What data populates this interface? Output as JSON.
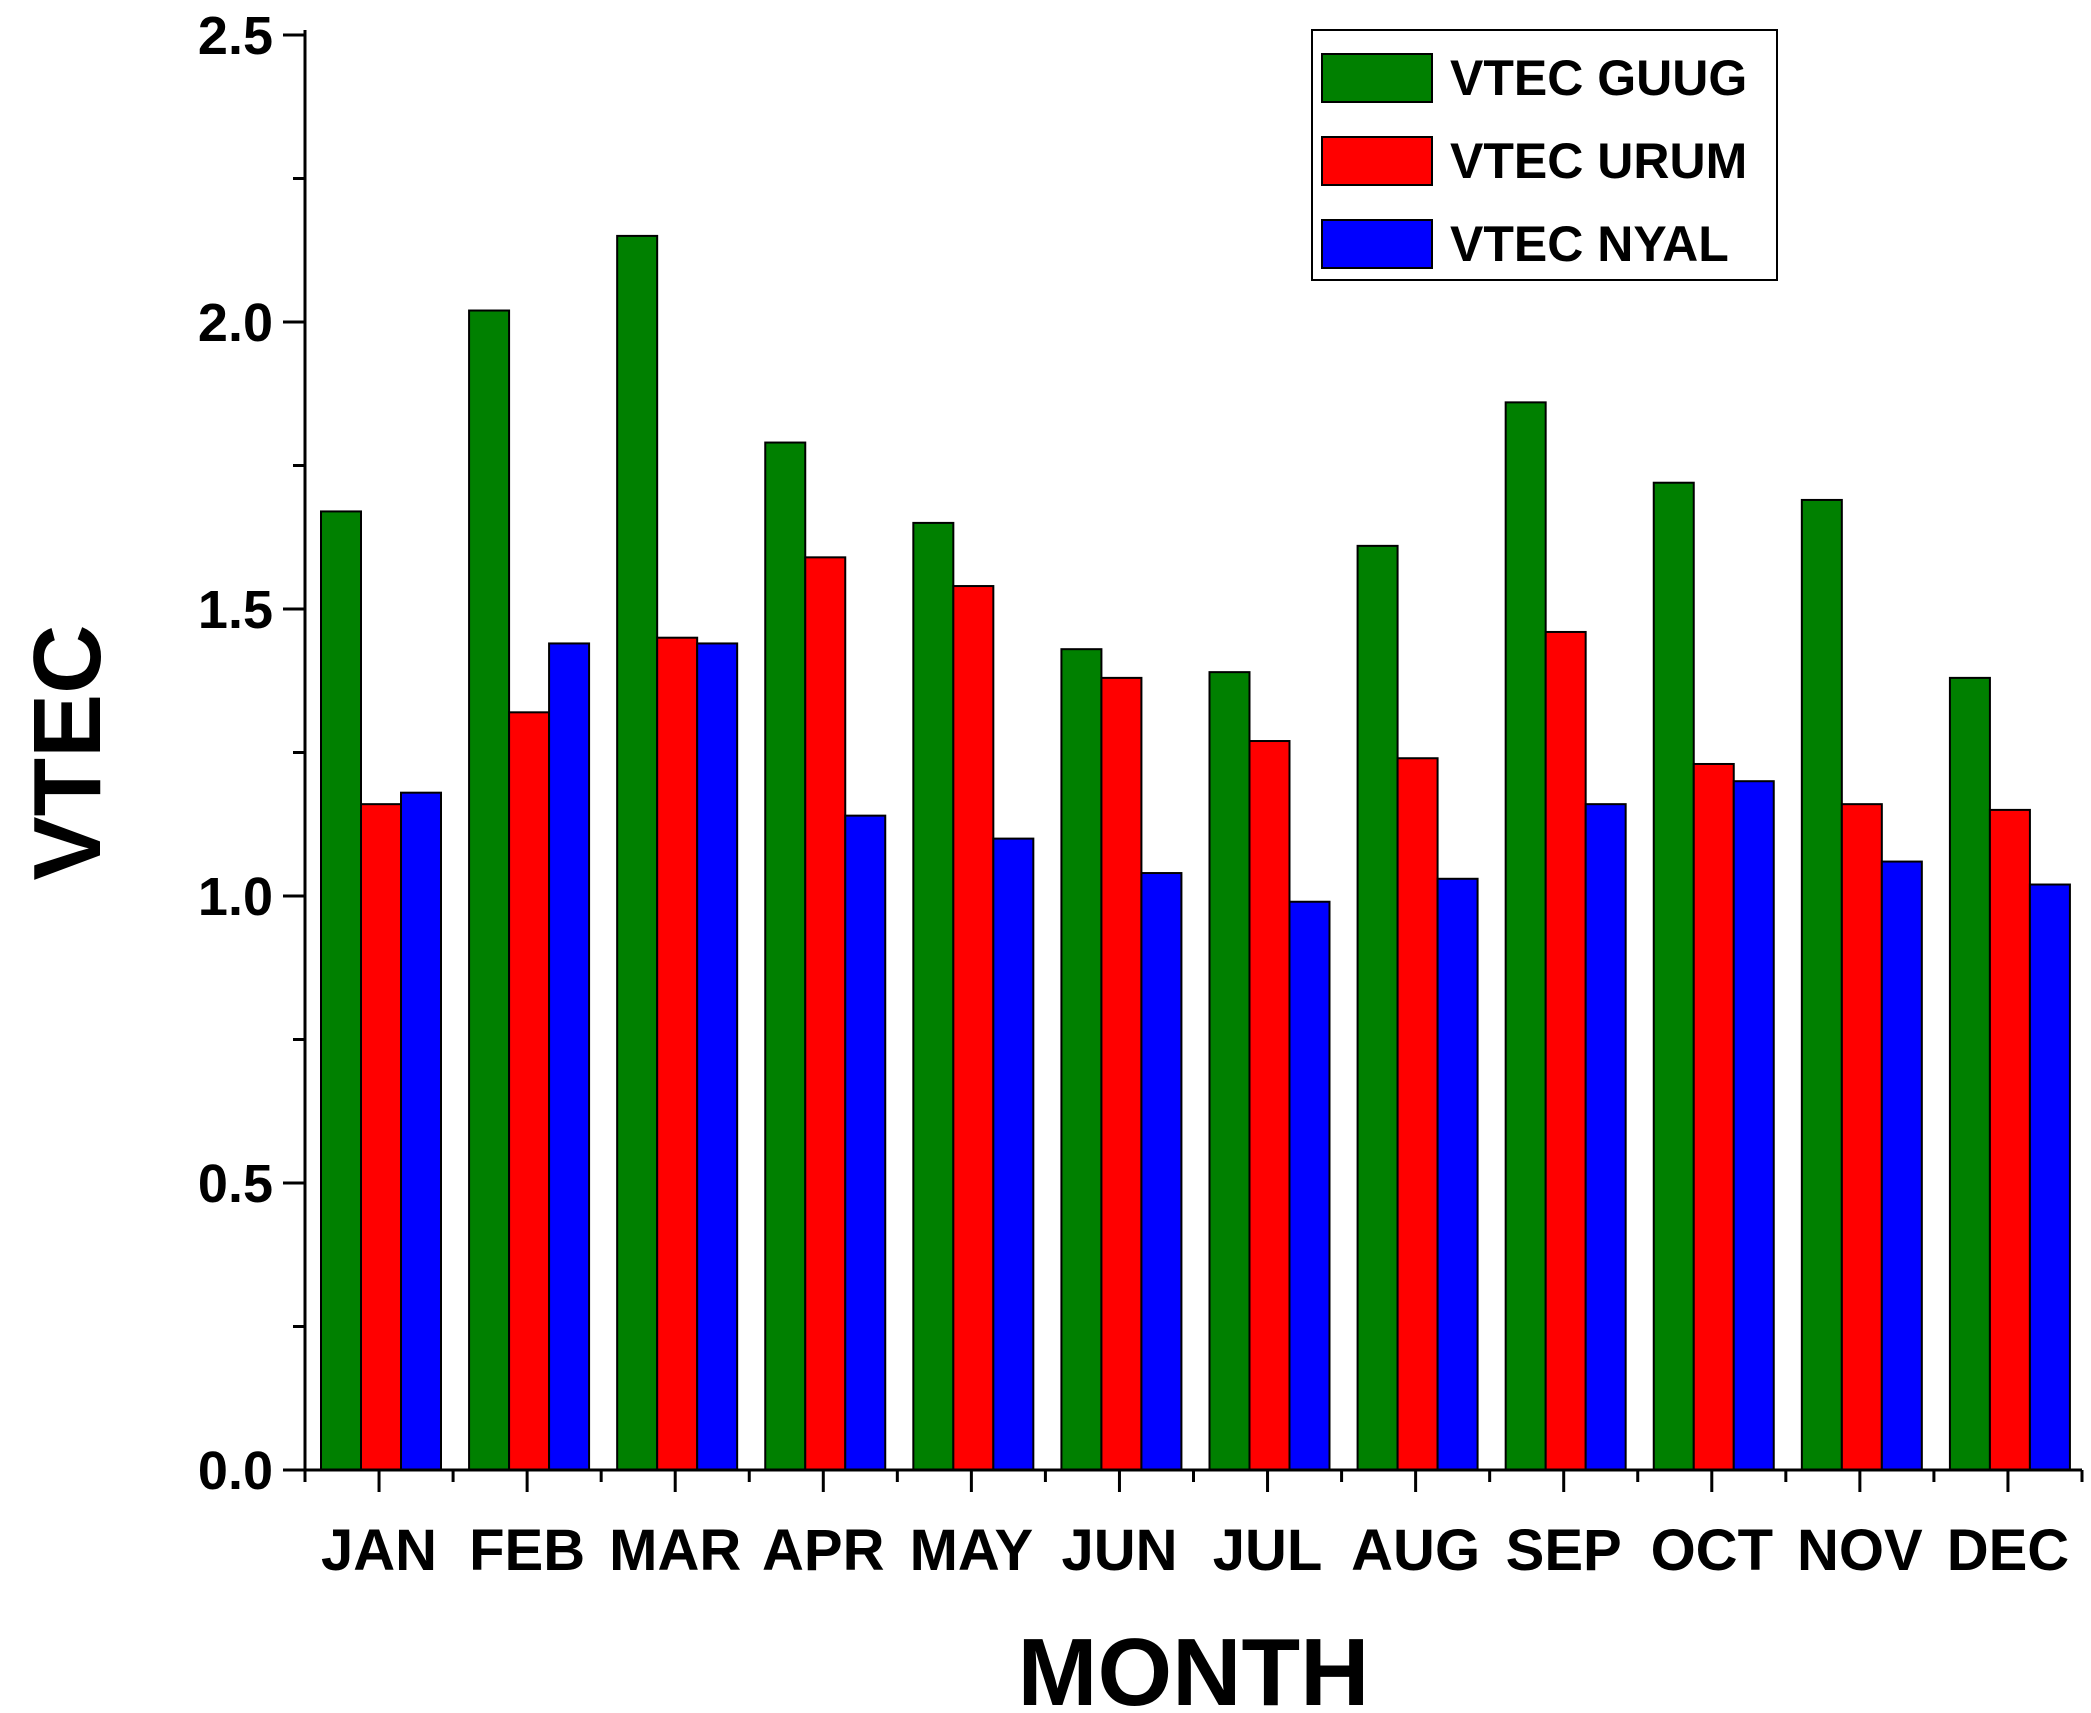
{
  "chart_data": {
    "type": "bar",
    "xlabel": "MONTH",
    "ylabel": "VTEC",
    "ylim": [
      0,
      2.5
    ],
    "yticks": [
      0.0,
      0.5,
      1.0,
      1.5,
      2.0,
      2.5
    ],
    "ytick_labels": [
      "0.0",
      "0.5",
      "1.0",
      "1.5",
      "2.0",
      "2.5"
    ],
    "grid": false,
    "legend_position": "top-right",
    "categories": [
      "JAN",
      "FEB",
      "MAR",
      "APR",
      "MAY",
      "JUN",
      "JUL",
      "AUG",
      "SEP",
      "OCT",
      "NOV",
      "DEC"
    ],
    "series": [
      {
        "name": "VTEC GUUG",
        "color": "#008000",
        "values": [
          1.67,
          2.02,
          2.15,
          1.79,
          1.65,
          1.43,
          1.39,
          1.61,
          1.86,
          1.72,
          1.69,
          1.38
        ]
      },
      {
        "name": "VTEC URUM",
        "color": "#ff0000",
        "values": [
          1.16,
          1.32,
          1.45,
          1.59,
          1.54,
          1.38,
          1.27,
          1.24,
          1.46,
          1.23,
          1.16,
          1.15
        ]
      },
      {
        "name": "VTEC NYAL",
        "color": "#0000ff",
        "values": [
          1.18,
          1.44,
          1.44,
          1.14,
          1.1,
          1.04,
          0.99,
          1.03,
          1.16,
          1.2,
          1.06,
          1.02
        ]
      }
    ]
  }
}
